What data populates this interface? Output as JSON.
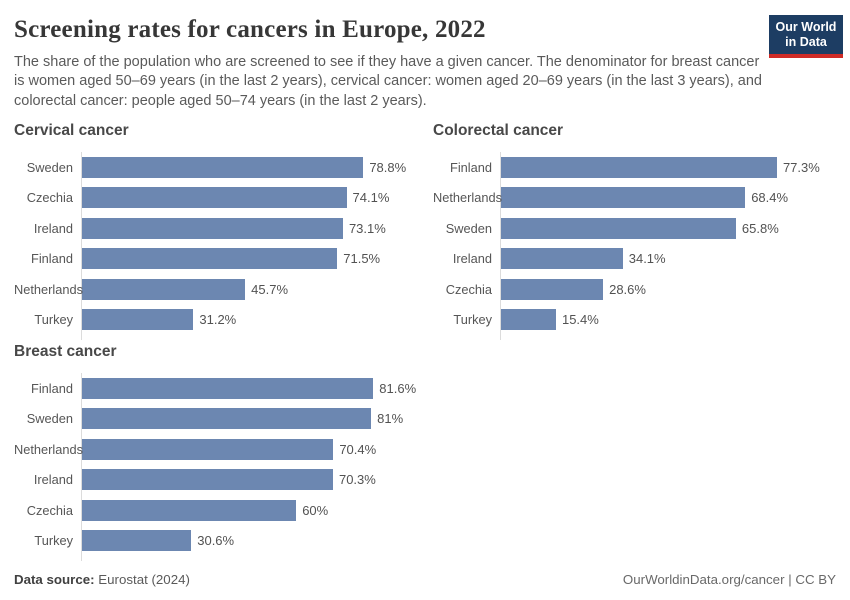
{
  "header": {
    "title": "Screening rates for cancers in Europe, 2022",
    "subtitle": "The share of the population who are screened to see if they have a given cancer. The denominator for breast cancer is women aged 50–69 years (in the last 2 years), cervical cancer: women aged 20–69 years (in the last 3 years), and colorectal cancer: people aged 50–74 years (in the last 2 years).",
    "logo": {
      "line1": "Our World",
      "line2": "in Data",
      "bg_color": "#1d3d63",
      "accent_color": "#cf2b26"
    }
  },
  "chart_data": [
    {
      "type": "bar",
      "title": "Cervical cancer",
      "orientation": "horizontal",
      "categories": [
        "Sweden",
        "Czechia",
        "Ireland",
        "Finland",
        "Netherlands",
        "Turkey"
      ],
      "values": [
        78.8,
        74.1,
        73.1,
        71.5,
        45.7,
        31.2
      ],
      "labels": [
        "78.8%",
        "74.1%",
        "73.1%",
        "71.5%",
        "45.7%",
        "31.2%"
      ],
      "xlim": [
        0,
        100
      ],
      "grid": false,
      "legend": false,
      "bar_color": "#6c87b1"
    },
    {
      "type": "bar",
      "title": "Colorectal cancer",
      "orientation": "horizontal",
      "categories": [
        "Finland",
        "Netherlands",
        "Sweden",
        "Ireland",
        "Czechia",
        "Turkey"
      ],
      "values": [
        77.3,
        68.4,
        65.8,
        34.1,
        28.6,
        15.4
      ],
      "labels": [
        "77.3%",
        "68.4%",
        "65.8%",
        "34.1%",
        "28.6%",
        "15.4%"
      ],
      "xlim": [
        0,
        100
      ],
      "grid": false,
      "legend": false,
      "bar_color": "#6c87b1"
    },
    {
      "type": "bar",
      "title": "Breast cancer",
      "orientation": "horizontal",
      "categories": [
        "Finland",
        "Sweden",
        "Netherlands",
        "Ireland",
        "Czechia",
        "Turkey"
      ],
      "values": [
        81.6,
        81,
        70.4,
        70.3,
        60,
        30.6
      ],
      "labels": [
        "81.6%",
        "81%",
        "70.4%",
        "70.3%",
        "60%",
        "30.6%"
      ],
      "xlim": [
        0,
        100
      ],
      "grid": false,
      "legend": false,
      "bar_color": "#6c87b1"
    }
  ],
  "footer": {
    "source_label": "Data source:",
    "source_value": "Eurostat (2024)",
    "credit": "OurWorldinData.org/cancer | CC BY"
  }
}
